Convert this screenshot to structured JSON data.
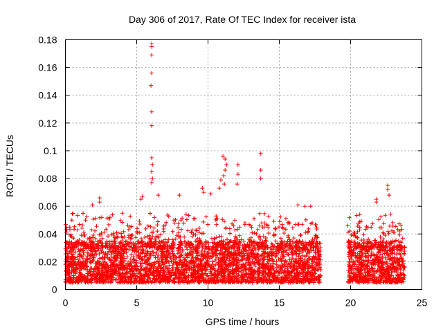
{
  "chart_data": {
    "type": "scatter",
    "title": "Day 306 of 2017, Rate Of TEC Index for receiver ista",
    "xlabel": "GPS time / hours",
    "ylabel": "ROTI / TECUs",
    "xlim": [
      0,
      25
    ],
    "ylim": [
      0,
      0.18
    ],
    "x_ticks": [
      0,
      5,
      10,
      15,
      20,
      25
    ],
    "x_tick_labels": [
      "0",
      "5",
      "10",
      "15",
      "20",
      "25"
    ],
    "y_ticks": [
      0,
      0.02,
      0.04,
      0.06,
      0.08,
      0.1,
      0.12,
      0.14,
      0.16,
      0.18
    ],
    "y_tick_labels": [
      "0",
      "0.02",
      "0.04",
      "0.06",
      "0.08",
      "0.1",
      "0.12",
      "0.14",
      "0.16",
      "0.18"
    ],
    "grid": true,
    "marker": "+",
    "series": [
      {
        "name": "ROTI",
        "color": "#ff0000",
        "data_gap_hours": [
          17.9,
          19.8
        ],
        "baseline_band": [
          0.005,
          0.035
        ],
        "notable_points": [
          {
            "x": 6.05,
            "y": 0.177
          },
          {
            "x": 6.05,
            "y": 0.175
          },
          {
            "x": 6.05,
            "y": 0.169
          },
          {
            "x": 6.05,
            "y": 0.156
          },
          {
            "x": 6.0,
            "y": 0.147
          },
          {
            "x": 6.05,
            "y": 0.128
          },
          {
            "x": 6.05,
            "y": 0.118
          },
          {
            "x": 6.05,
            "y": 0.095
          },
          {
            "x": 6.1,
            "y": 0.09
          },
          {
            "x": 6.05,
            "y": 0.085
          },
          {
            "x": 6.1,
            "y": 0.08
          },
          {
            "x": 6.05,
            "y": 0.077
          },
          {
            "x": 11.05,
            "y": 0.096
          },
          {
            "x": 11.2,
            "y": 0.094
          },
          {
            "x": 11.3,
            "y": 0.09
          },
          {
            "x": 11.2,
            "y": 0.086
          },
          {
            "x": 11.1,
            "y": 0.082
          },
          {
            "x": 10.9,
            "y": 0.079
          },
          {
            "x": 11.15,
            "y": 0.076
          },
          {
            "x": 10.8,
            "y": 0.073
          },
          {
            "x": 12.1,
            "y": 0.09
          },
          {
            "x": 12.1,
            "y": 0.083
          },
          {
            "x": 12.05,
            "y": 0.076
          },
          {
            "x": 13.7,
            "y": 0.098
          },
          {
            "x": 13.7,
            "y": 0.086
          },
          {
            "x": 13.7,
            "y": 0.08
          },
          {
            "x": 9.6,
            "y": 0.073
          },
          {
            "x": 9.7,
            "y": 0.07
          },
          {
            "x": 10.2,
            "y": 0.069
          },
          {
            "x": 22.6,
            "y": 0.075
          },
          {
            "x": 22.6,
            "y": 0.072
          },
          {
            "x": 22.7,
            "y": 0.068
          },
          {
            "x": 21.8,
            "y": 0.065
          },
          {
            "x": 21.8,
            "y": 0.063
          },
          {
            "x": 2.4,
            "y": 0.066
          },
          {
            "x": 2.4,
            "y": 0.063
          },
          {
            "x": 1.9,
            "y": 0.061
          },
          {
            "x": 5.4,
            "y": 0.067
          },
          {
            "x": 5.3,
            "y": 0.065
          },
          {
            "x": 6.5,
            "y": 0.068
          },
          {
            "x": 8.0,
            "y": 0.068
          },
          {
            "x": 16.3,
            "y": 0.061
          },
          {
            "x": 16.8,
            "y": 0.06
          },
          {
            "x": 17.2,
            "y": 0.06
          },
          {
            "x": 0.3,
            "y": 0.045
          },
          {
            "x": 0.1,
            "y": 0.043
          }
        ]
      }
    ]
  }
}
